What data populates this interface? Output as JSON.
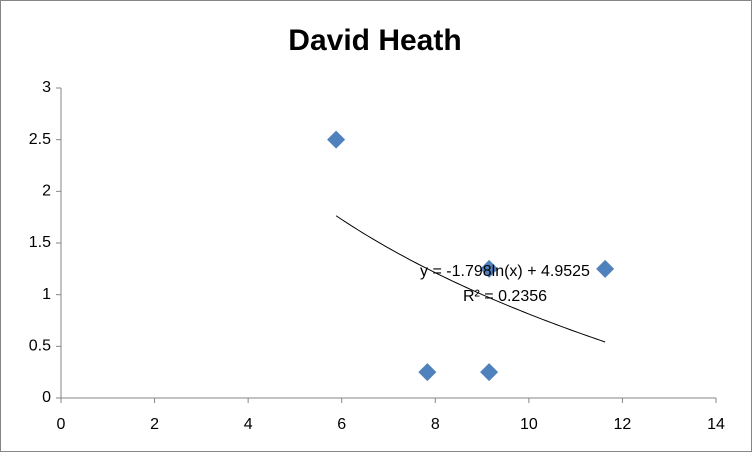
{
  "chart_data": {
    "type": "scatter",
    "title": "David Heath",
    "series": [
      {
        "name": "David Heath",
        "color": "#4f81bd",
        "x": [
          5.88,
          7.83,
          9.15,
          9.15,
          11.63
        ],
        "values": [
          2.5,
          0.25,
          1.25,
          0.25,
          1.25
        ]
      }
    ],
    "trendline": {
      "type": "log",
      "color": "#000000",
      "equation": "y = -1.798ln(x) + 4.9525",
      "r_squared": "R² = 0.2356"
    },
    "xlim": [
      0,
      14
    ],
    "xticks": [
      0,
      2,
      4,
      6,
      8,
      10,
      12,
      14
    ],
    "ylim": [
      0,
      3
    ],
    "yticks": [
      0,
      {
        "value": 0.5,
        "label": "0.5"
      },
      1,
      1.5,
      2,
      2.5,
      3
    ],
    "grid": false,
    "legend": false
  }
}
